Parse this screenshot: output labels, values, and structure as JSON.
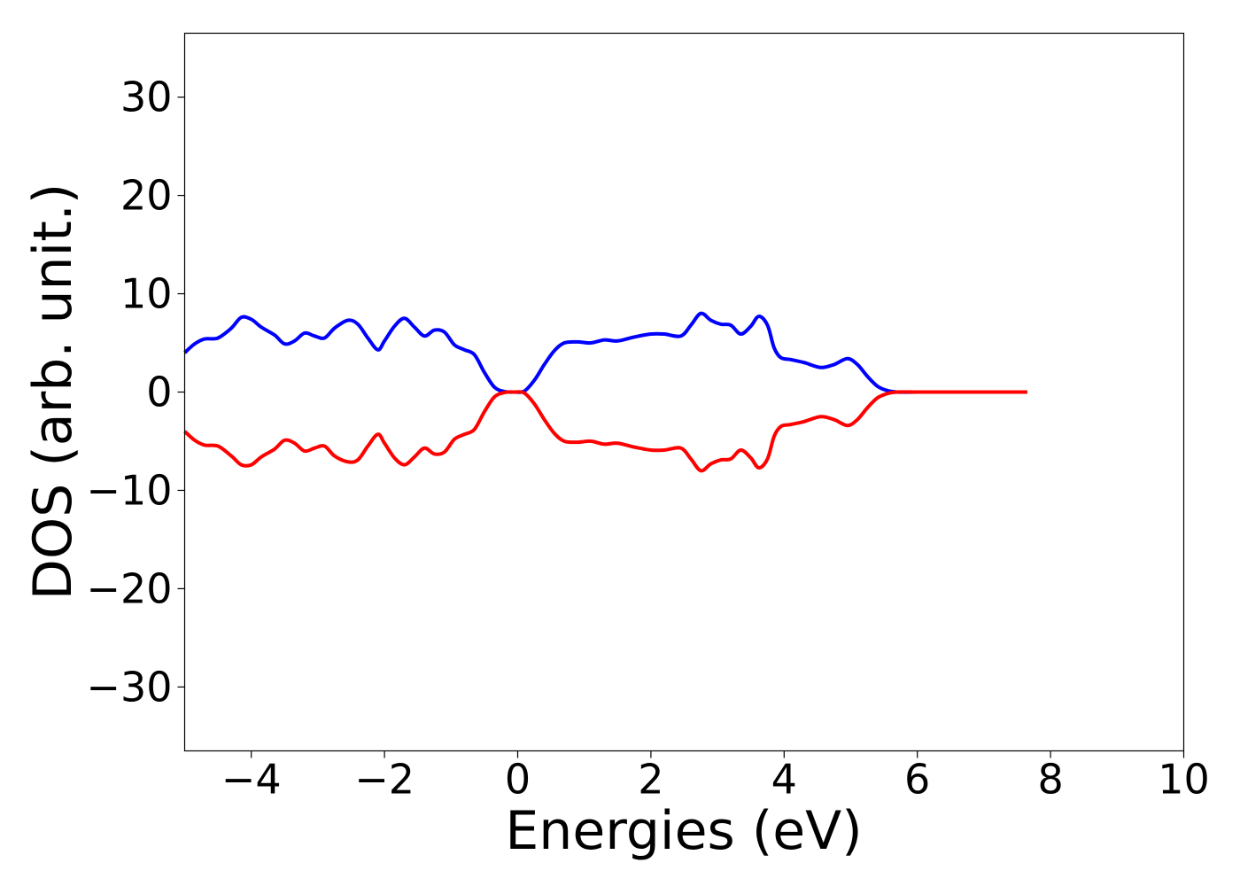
{
  "chart_data": {
    "type": "line",
    "title": "",
    "xlabel": "Energies (eV)",
    "ylabel": "DOS (arb. unit.)",
    "xlim": [
      -5,
      10
    ],
    "ylim": [
      -36.5,
      36.5
    ],
    "xticks": [
      -4,
      -2,
      0,
      2,
      4,
      6,
      8,
      10
    ],
    "yticks": [
      -30,
      -20,
      -10,
      0,
      10,
      20,
      30
    ],
    "xtick_labels": [
      "−4",
      "−2",
      "0",
      "2",
      "4",
      "6",
      "8",
      "10"
    ],
    "ytick_labels": [
      "−30",
      "−20",
      "−10",
      "0",
      "10",
      "20",
      "30"
    ],
    "grid": false,
    "legend": "none",
    "series": [
      {
        "color": "#0000ff",
        "x": [
          -5.0,
          -4.85,
          -4.7,
          -4.5,
          -4.3,
          -4.15,
          -4.0,
          -3.85,
          -3.65,
          -3.5,
          -3.35,
          -3.2,
          -3.05,
          -2.9,
          -2.75,
          -2.55,
          -2.4,
          -2.25,
          -2.1,
          -2.0,
          -1.85,
          -1.7,
          -1.55,
          -1.4,
          -1.25,
          -1.1,
          -0.95,
          -0.8,
          -0.65,
          -0.5,
          -0.35,
          -0.2,
          -0.05,
          0.1,
          0.25,
          0.4,
          0.55,
          0.7,
          0.9,
          1.1,
          1.3,
          1.5,
          1.75,
          2.0,
          2.2,
          2.45,
          2.6,
          2.75,
          2.9,
          3.05,
          3.2,
          3.35,
          3.5,
          3.62,
          3.75,
          3.85,
          3.95,
          4.1,
          4.3,
          4.55,
          4.75,
          4.95,
          5.1,
          5.25,
          5.4,
          5.55,
          5.7,
          6.0,
          6.5,
          7.0,
          7.65
        ],
        "y": [
          4.0,
          4.9,
          5.4,
          5.5,
          6.5,
          7.6,
          7.4,
          6.6,
          5.8,
          4.9,
          5.2,
          6.0,
          5.7,
          5.5,
          6.5,
          7.3,
          6.9,
          5.5,
          4.3,
          5.2,
          6.7,
          7.5,
          6.6,
          5.7,
          6.3,
          6.1,
          4.8,
          4.3,
          3.8,
          2.0,
          0.5,
          0.05,
          0.0,
          0.1,
          1.2,
          2.8,
          4.2,
          5.0,
          5.1,
          5.0,
          5.3,
          5.2,
          5.6,
          5.9,
          5.9,
          5.7,
          6.8,
          8.0,
          7.3,
          6.9,
          6.8,
          5.9,
          6.7,
          7.7,
          6.8,
          4.5,
          3.5,
          3.3,
          3.0,
          2.5,
          2.8,
          3.4,
          2.8,
          1.6,
          0.6,
          0.15,
          0.0,
          0.0,
          0.0,
          0.0,
          0.0
        ]
      },
      {
        "color": "#ff0000",
        "x": [
          -5.0,
          -4.85,
          -4.7,
          -4.5,
          -4.3,
          -4.15,
          -4.0,
          -3.85,
          -3.65,
          -3.5,
          -3.35,
          -3.2,
          -3.05,
          -2.9,
          -2.75,
          -2.55,
          -2.4,
          -2.25,
          -2.1,
          -2.0,
          -1.85,
          -1.7,
          -1.55,
          -1.4,
          -1.25,
          -1.1,
          -0.95,
          -0.8,
          -0.65,
          -0.5,
          -0.35,
          -0.2,
          -0.05,
          0.1,
          0.25,
          0.4,
          0.55,
          0.7,
          0.9,
          1.1,
          1.3,
          1.5,
          1.75,
          2.0,
          2.2,
          2.45,
          2.6,
          2.75,
          2.9,
          3.05,
          3.2,
          3.35,
          3.5,
          3.62,
          3.75,
          3.85,
          3.95,
          4.1,
          4.3,
          4.55,
          4.75,
          4.95,
          5.1,
          5.25,
          5.4,
          5.55,
          5.7,
          6.0,
          6.5,
          7.0,
          7.65
        ],
        "y": [
          -4.0,
          -4.9,
          -5.4,
          -5.5,
          -6.5,
          -7.4,
          -7.4,
          -6.6,
          -5.8,
          -4.9,
          -5.2,
          -6.0,
          -5.7,
          -5.5,
          -6.5,
          -7.1,
          -6.9,
          -5.5,
          -4.3,
          -5.2,
          -6.7,
          -7.4,
          -6.6,
          -5.7,
          -6.3,
          -6.1,
          -4.8,
          -4.3,
          -3.8,
          -2.0,
          -0.5,
          -0.05,
          0.0,
          -0.1,
          -1.2,
          -2.8,
          -4.2,
          -5.0,
          -5.1,
          -5.0,
          -5.3,
          -5.2,
          -5.6,
          -5.9,
          -5.9,
          -5.7,
          -6.8,
          -8.0,
          -7.3,
          -6.9,
          -6.8,
          -5.9,
          -6.7,
          -7.7,
          -6.8,
          -4.5,
          -3.5,
          -3.3,
          -3.0,
          -2.5,
          -2.8,
          -3.4,
          -2.8,
          -1.6,
          -0.6,
          -0.15,
          0.0,
          0.0,
          0.0,
          0.0,
          0.0
        ]
      }
    ]
  }
}
